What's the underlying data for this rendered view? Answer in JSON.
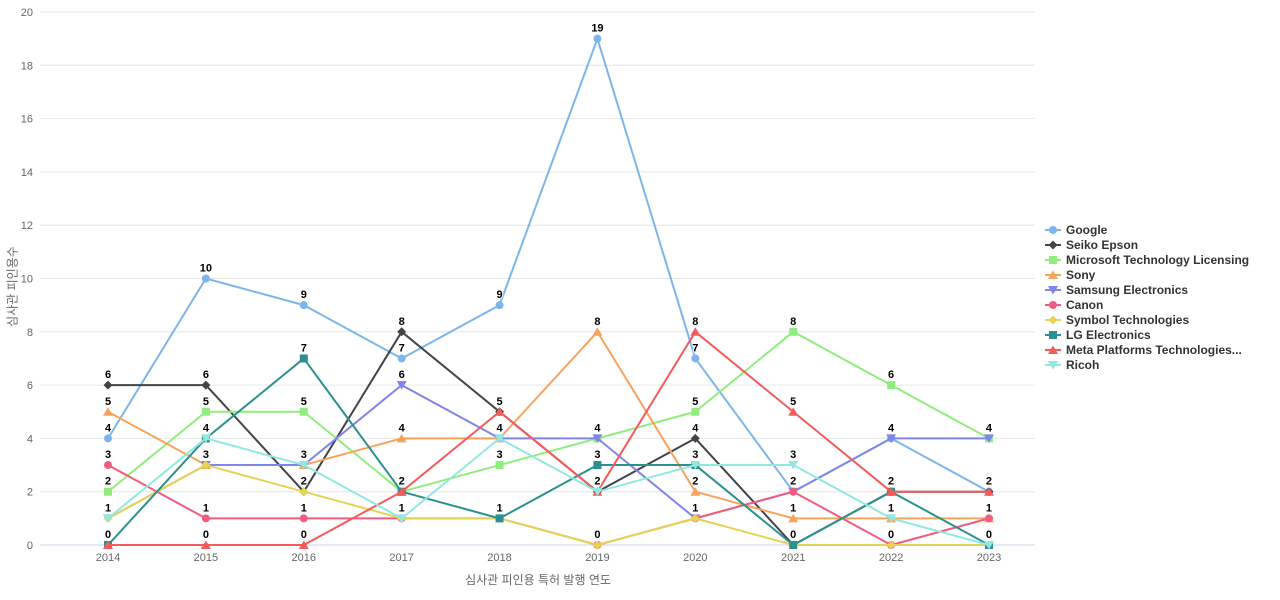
{
  "chart_data": {
    "type": "line",
    "categories": [
      "2014",
      "2015",
      "2016",
      "2017",
      "2018",
      "2019",
      "2020",
      "2021",
      "2022",
      "2023"
    ],
    "series": [
      {
        "name": "Google",
        "color": "#7cb5ec",
        "marker": "circle",
        "values": [
          4,
          10,
          9,
          7,
          9,
          19,
          7,
          2,
          4,
          2
        ]
      },
      {
        "name": "Seiko Epson",
        "color": "#434348",
        "marker": "diamond",
        "values": [
          6,
          6,
          2,
          8,
          5,
          2,
          4,
          0,
          2,
          2
        ]
      },
      {
        "name": "Microsoft Technology Licensing",
        "color": "#90ed7d",
        "marker": "square",
        "values": [
          2,
          5,
          5,
          2,
          3,
          4,
          5,
          8,
          6,
          4
        ]
      },
      {
        "name": "Sony",
        "color": "#f7a35c",
        "marker": "triangle",
        "values": [
          5,
          3,
          3,
          4,
          4,
          8,
          2,
          1,
          1,
          1
        ]
      },
      {
        "name": "Samsung Electronics",
        "color": "#8085e9",
        "marker": "triangle-down",
        "values": [
          1,
          3,
          3,
          6,
          4,
          4,
          1,
          2,
          4,
          4
        ]
      },
      {
        "name": "Canon",
        "color": "#f15c80",
        "marker": "circle",
        "values": [
          3,
          1,
          1,
          1,
          1,
          0,
          1,
          2,
          0,
          1
        ]
      },
      {
        "name": "Symbol Technologies",
        "color": "#e4d354",
        "marker": "diamond",
        "values": [
          1,
          3,
          2,
          1,
          1,
          0,
          1,
          0,
          0,
          0
        ]
      },
      {
        "name": "LG Electronics",
        "color": "#2b908f",
        "marker": "square",
        "values": [
          0,
          4,
          7,
          2,
          1,
          3,
          3,
          0,
          2,
          0
        ]
      },
      {
        "name": "Meta Platforms Technologies...",
        "color": "#f45b5b",
        "marker": "triangle",
        "values": [
          0,
          0,
          0,
          2,
          5,
          2,
          8,
          5,
          2,
          2
        ]
      },
      {
        "name": "Ricoh",
        "color": "#91e8e1",
        "marker": "triangle-down",
        "values": [
          1,
          4,
          3,
          1,
          4,
          2,
          3,
          3,
          1,
          0
        ]
      }
    ],
    "title": "",
    "xlabel": "심사관 피인용 특허 발행 연도",
    "ylabel": "심사관 피인용수",
    "ylim": [
      0,
      20
    ],
    "ytick_step": 2,
    "grid": true,
    "grid_color": "#e6e6e6",
    "axis_line_color": "#ccd6eb",
    "tick_label_color": "#666666",
    "legend_position": "right"
  }
}
